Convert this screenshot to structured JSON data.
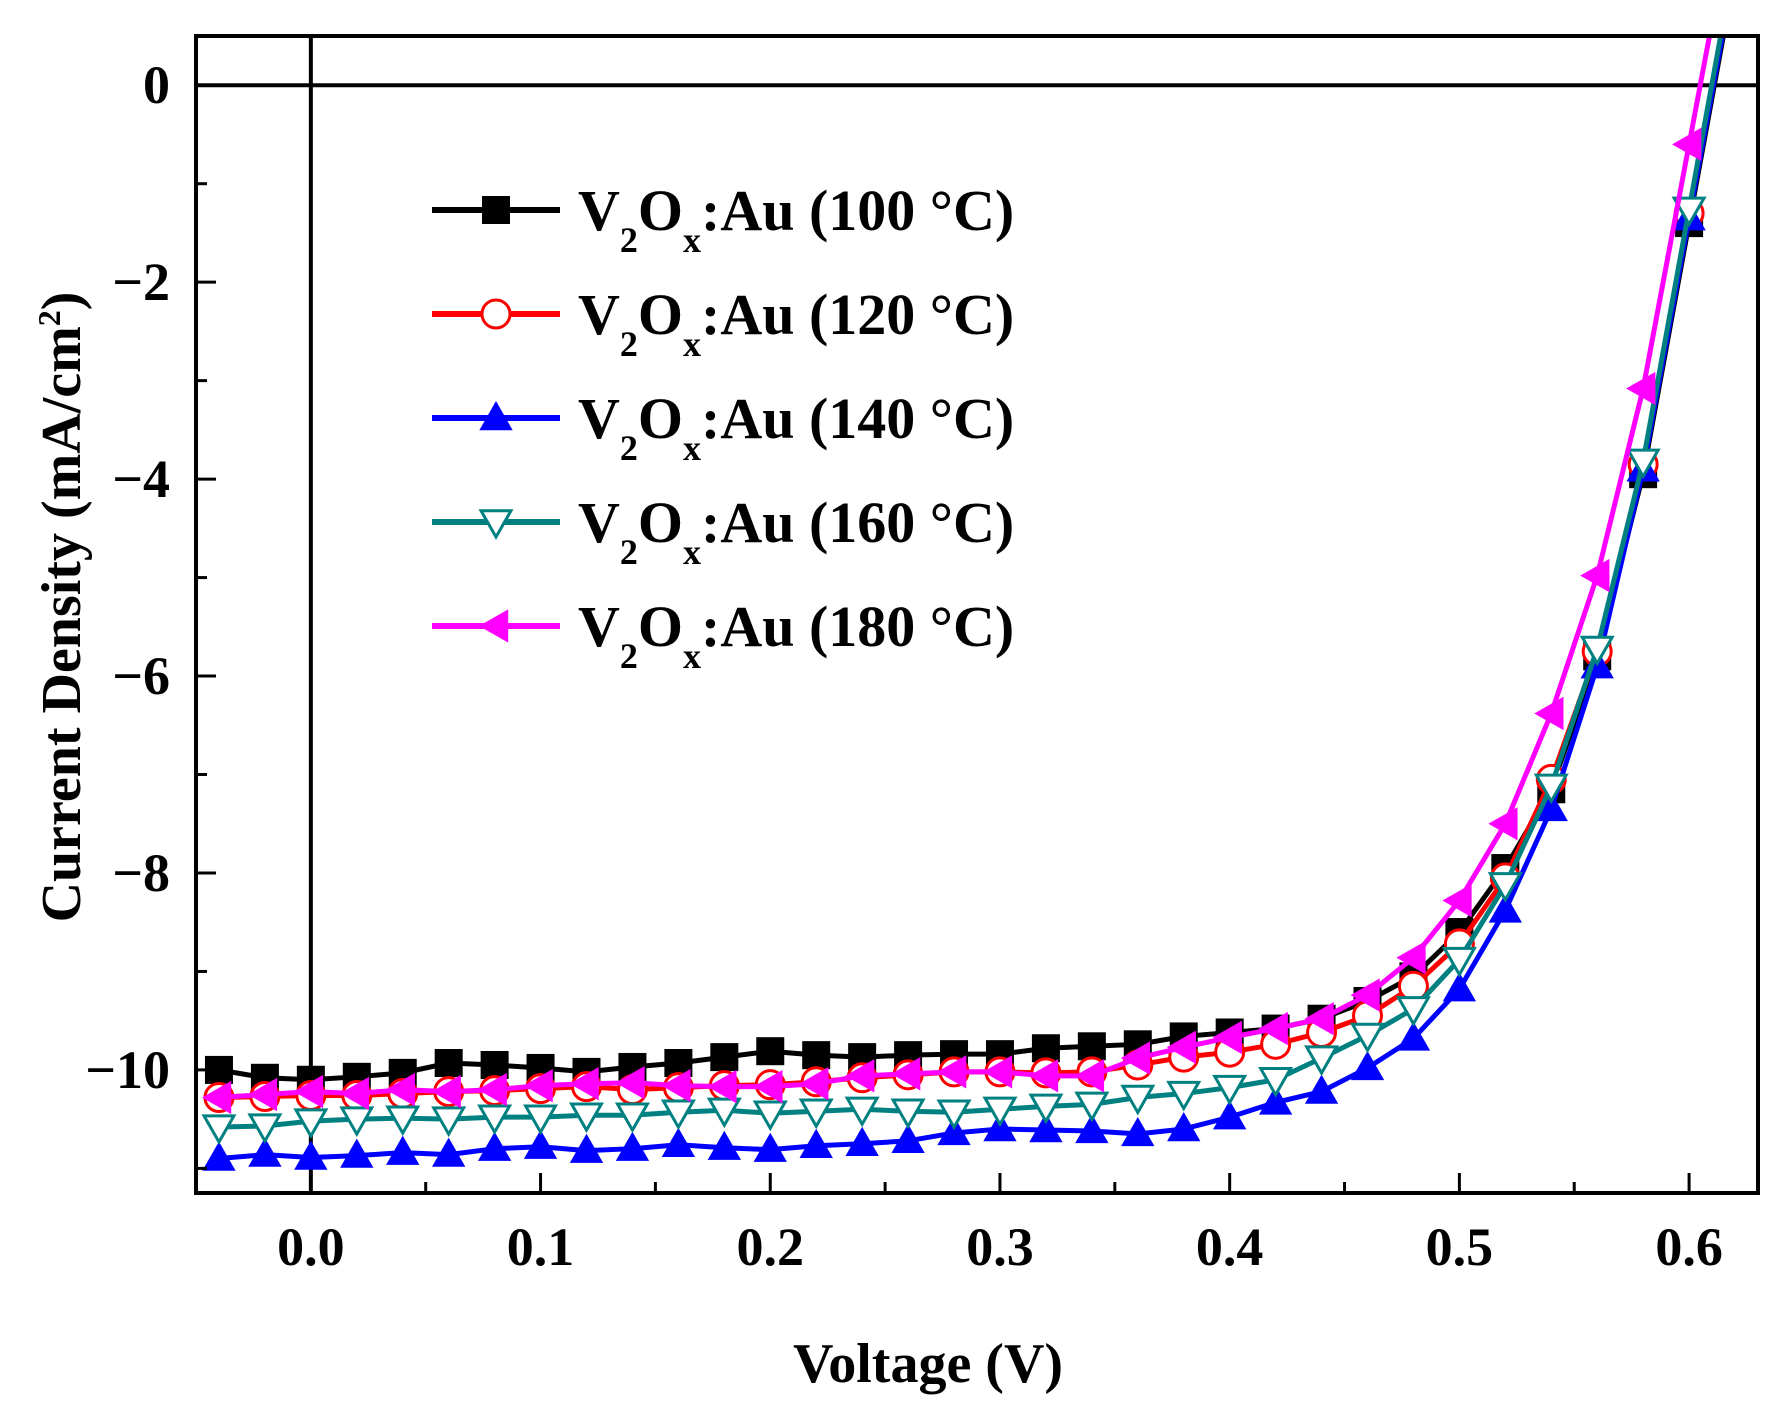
{
  "chart_data": {
    "type": "line",
    "title": "",
    "xlabel": "Voltage (V)",
    "ylabel": {
      "main": "Current Density (mA/cm",
      "sup": "2",
      "end": ")"
    },
    "xlim": [
      -0.05,
      0.63
    ],
    "ylim": [
      -11.25,
      0.5
    ],
    "x_ticks": [
      0.0,
      0.1,
      0.2,
      0.3,
      0.4,
      0.5,
      0.6
    ],
    "x_tick_labels": [
      "0.0",
      "0.1",
      "0.2",
      "0.3",
      "0.4",
      "0.5",
      "0.6"
    ],
    "y_ticks": [
      0,
      -2,
      -4,
      -6,
      -8,
      -10
    ],
    "y_tick_labels": [
      "0",
      "−2",
      "−4",
      "−6",
      "−8",
      "−10"
    ],
    "reference_lines": {
      "x": 0,
      "y": 0
    },
    "legend_position": "upper-left",
    "x": [
      -0.04,
      -0.02,
      0.0,
      0.02,
      0.04,
      0.06,
      0.08,
      0.1,
      0.12,
      0.14,
      0.16,
      0.18,
      0.2,
      0.22,
      0.24,
      0.26,
      0.28,
      0.3,
      0.32,
      0.34,
      0.36,
      0.38,
      0.4,
      0.42,
      0.44,
      0.46,
      0.48,
      0.5,
      0.52,
      0.54,
      0.56,
      0.58,
      0.6
    ],
    "series": [
      {
        "name": "V2Ox:Au (100 °C)",
        "label": {
          "pre": "V",
          "sub1": "2",
          "mid": "O",
          "sub2": "x",
          "post": ":Au (100 °C)"
        },
        "color": "#000000",
        "marker": "square",
        "values": [
          -10.0,
          -10.08,
          -10.1,
          -10.07,
          -10.03,
          -9.93,
          -9.95,
          -9.98,
          -10.02,
          -9.97,
          -9.93,
          -9.87,
          -9.81,
          -9.85,
          -9.87,
          -9.85,
          -9.84,
          -9.84,
          -9.78,
          -9.76,
          -9.74,
          -9.66,
          -9.62,
          -9.58,
          -9.48,
          -9.3,
          -9.05,
          -8.6,
          -7.95,
          -7.15,
          -5.8,
          -3.95,
          -1.4
        ]
      },
      {
        "name": "V2Ox:Au (120 °C)",
        "label": {
          "pre": "V",
          "sub1": "2",
          "mid": "O",
          "sub2": "x",
          "post": ":Au (120 °C)"
        },
        "color": "#ff0000",
        "marker": "circle-open",
        "values": [
          -10.28,
          -10.27,
          -10.26,
          -10.26,
          -10.24,
          -10.22,
          -10.21,
          -10.19,
          -10.17,
          -10.2,
          -10.18,
          -10.16,
          -10.15,
          -10.12,
          -10.08,
          -10.05,
          -10.02,
          -10.02,
          -10.03,
          -10.02,
          -9.95,
          -9.87,
          -9.82,
          -9.74,
          -9.62,
          -9.45,
          -9.15,
          -8.72,
          -8.05,
          -7.05,
          -5.75,
          -3.85,
          -1.3
        ]
      },
      {
        "name": "V2Ox:Au (140 °C)",
        "label": {
          "pre": "V",
          "sub1": "2",
          "mid": "O",
          "sub2": "x",
          "post": ":Au (140 °C)"
        },
        "color": "#0000ff",
        "marker": "triangle-up",
        "values": [
          -10.9,
          -10.86,
          -10.89,
          -10.87,
          -10.84,
          -10.86,
          -10.8,
          -10.78,
          -10.82,
          -10.8,
          -10.76,
          -10.79,
          -10.81,
          -10.77,
          -10.75,
          -10.72,
          -10.64,
          -10.6,
          -10.61,
          -10.62,
          -10.65,
          -10.6,
          -10.48,
          -10.33,
          -10.22,
          -9.98,
          -9.68,
          -9.18,
          -8.38,
          -7.35,
          -5.9,
          -3.9,
          -1.35
        ]
      },
      {
        "name": "V2Ox:Au (160 °C)",
        "label": {
          "pre": "V",
          "sub1": "2",
          "mid": "O",
          "sub2": "x",
          "post": ":Au (160 °C)"
        },
        "color": "#008080",
        "marker": "triangle-down-open",
        "values": [
          -10.58,
          -10.57,
          -10.52,
          -10.5,
          -10.49,
          -10.5,
          -10.48,
          -10.48,
          -10.46,
          -10.46,
          -10.43,
          -10.41,
          -10.44,
          -10.42,
          -10.4,
          -10.42,
          -10.43,
          -10.4,
          -10.37,
          -10.35,
          -10.28,
          -10.24,
          -10.18,
          -10.1,
          -9.88,
          -9.65,
          -9.38,
          -8.88,
          -8.12,
          -7.12,
          -5.72,
          -3.82,
          -1.26
        ]
      },
      {
        "name": "V2Ox:Au (180 °C)",
        "label": {
          "pre": "V",
          "sub1": "2",
          "mid": "O",
          "sub2": "x",
          "post": ":Au (180 °C)"
        },
        "color": "#ff00ff",
        "marker": "triangle-left",
        "values": [
          -10.28,
          -10.25,
          -10.22,
          -10.24,
          -10.2,
          -10.22,
          -10.2,
          -10.16,
          -10.14,
          -10.13,
          -10.16,
          -10.17,
          -10.17,
          -10.14,
          -10.06,
          -10.04,
          -10.02,
          -10.02,
          -10.06,
          -10.06,
          -9.88,
          -9.77,
          -9.67,
          -9.58,
          -9.48,
          -9.24,
          -8.86,
          -8.28,
          -7.5,
          -6.38,
          -4.98,
          -3.08,
          -0.6
        ]
      }
    ]
  }
}
